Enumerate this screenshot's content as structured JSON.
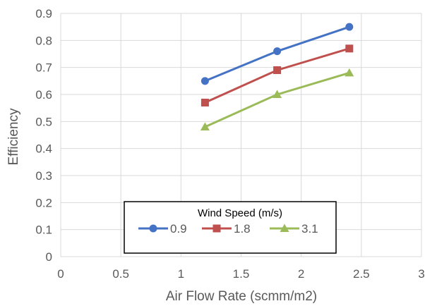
{
  "chart_data": {
    "type": "line",
    "xlabel": "Air Flow Rate (scmm/m2)",
    "ylabel": "Efficiency",
    "xlim": [
      0,
      3
    ],
    "ylim": [
      0,
      0.9
    ],
    "x_ticks": [
      "0",
      "0.5",
      "1",
      "1.5",
      "2",
      "2.5",
      "3"
    ],
    "y_ticks": [
      "0",
      "0.1",
      "0.2",
      "0.3",
      "0.4",
      "0.5",
      "0.6",
      "0.7",
      "0.8",
      "0.9"
    ],
    "grid": true,
    "legend": {
      "title": "Wind Speed (m/s)",
      "placement": "bottom-center"
    },
    "series": [
      {
        "name": "0.9",
        "color": "#4472C4",
        "marker": "circle",
        "x": [
          1.2,
          1.8,
          2.4
        ],
        "y": [
          0.65,
          0.76,
          0.85
        ]
      },
      {
        "name": "1.8",
        "color": "#C0504D",
        "marker": "square",
        "x": [
          1.2,
          1.8,
          2.4
        ],
        "y": [
          0.57,
          0.69,
          0.77
        ]
      },
      {
        "name": "3.1",
        "color": "#9BBB59",
        "marker": "triangle",
        "x": [
          1.2,
          1.8,
          2.4
        ],
        "y": [
          0.48,
          0.6,
          0.68
        ]
      }
    ]
  }
}
